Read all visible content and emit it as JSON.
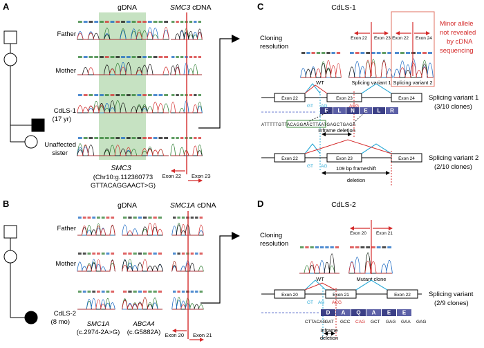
{
  "panelA": {
    "label": "A",
    "gdna_header": "gDNA",
    "cdna_gene": "SMC3",
    "cdna_suffix": " cDNA",
    "rows": [
      "Father",
      "Mother",
      "CdLS-1",
      "(17 yr)",
      "Unaffected",
      "sister"
    ],
    "gene_label": "SMC3",
    "variant_line1": "(Chr10:g.112360773",
    "variant_line2": "GTTACAGGAACT>G)",
    "exon_left": "Exon 22",
    "exon_right": "Exon 23"
  },
  "panelB": {
    "label": "B",
    "gdna_header": "gDNA",
    "cdna_gene": "SMC1A",
    "cdna_suffix": " cDNA",
    "rows": [
      "Father",
      "Mother",
      "CdLS-2",
      "(8 mo)"
    ],
    "gene1": "SMC1A",
    "variant1": "(c.2974-2A>G)",
    "gene2": "ABCA4",
    "variant2": "(c.G5882A)",
    "exon_left": "Exon 20",
    "exon_right": "Exon 21"
  },
  "panelC": {
    "label": "C",
    "title": "CdLS-1",
    "cloning": [
      "Cloning",
      "resolution"
    ],
    "wt": "WT",
    "variant1_label": "Splicing variant 1",
    "variant2_label": "Splicing variant 2",
    "exon22": "Exon 22",
    "exon23": "Exon 23",
    "exon24": "Exon 24",
    "minor_allele": [
      "Minor allele",
      "not revealed",
      "by cDNA",
      "sequencing"
    ],
    "sv1": [
      "Splicing variant 1",
      "(3/10 clones)"
    ],
    "sv2": [
      "Splicing variant 2",
      "(2/10 clones)"
    ],
    "aa_v1": [
      "E",
      "L",
      "N",
      "E",
      "L",
      "R"
    ],
    "dna_v1": "ATTTTTGTTACAGGAACTTAATGAGCTGAGA",
    "inframe": "Inframe deletion",
    "frameshift": [
      "109 bp frameshift",
      "deletion"
    ],
    "gt": "GT",
    "ag": "AG",
    "acg": "ACG"
  },
  "panelD": {
    "label": "D",
    "title": "CdLS-2",
    "cloning": [
      "Cloning",
      "resolution"
    ],
    "wt": "WT",
    "mutant": "Mutant clone",
    "exon20": "Exon 20",
    "exon21": "Exon 21",
    "exon22": "Exon 22",
    "splicing": [
      "Splicing variant",
      "(2/9 clones)"
    ],
    "aa": [
      "D",
      "A",
      "Q",
      "A",
      "E",
      "E"
    ],
    "codons": [
      "GAT",
      "GCC",
      "CAG",
      "GCT",
      "GAG",
      "GAA",
      "GAG"
    ],
    "prefix": "CTTACAG",
    "inframe": [
      "Inframe",
      "deletion"
    ],
    "gt": "GT",
    "ag": "AG",
    "acg": "ACG"
  },
  "colors": {
    "red": "#d42a2a",
    "cyan": "#29a9d6",
    "green_shade": "#c6e2c2",
    "navy": "#3b3f86",
    "arrow_blue": "#6b7bd0"
  }
}
